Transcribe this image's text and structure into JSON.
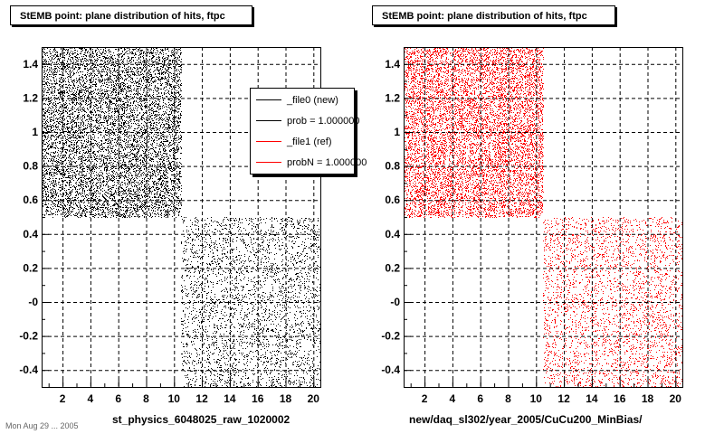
{
  "panels": [
    {
      "title": "StEMB point: plane distribution of hits, ftpc",
      "xlabel": "st_physics_6048025_raw_1020002"
    },
    {
      "title": "StEMB point: plane distribution of hits, ftpc",
      "xlabel": "new/daq_sl302/year_2005/CuCu200_MinBias/"
    }
  ],
  "legend": {
    "entries": [
      {
        "label": "_file0 (new)",
        "color": "#000000"
      },
      {
        "label": "prob = 1.000000",
        "color": "#000000"
      },
      {
        "label": "_file1 (ref)",
        "color": "#ff0000"
      },
      {
        "label": "probN = 1.000000",
        "color": "#ff0000"
      }
    ]
  },
  "footer": "Mon Aug 29 ... 2005",
  "chart_data": [
    {
      "type": "scatter",
      "title": "StEMB point: plane distribution of hits, ftpc",
      "xlabel": "st_physics_6048025_raw_1020002",
      "ylabel": "",
      "xlim": [
        0.5,
        20.5
      ],
      "ylim": [
        -0.5,
        1.5
      ],
      "xticks": [
        "2",
        "4",
        "6",
        "8",
        "10",
        "12",
        "14",
        "16",
        "18",
        "20"
      ],
      "yticks": [
        "-0.4",
        "-0.2",
        "-0",
        "0.2",
        "0.4",
        "0.6",
        "0.8",
        "1",
        "1.2",
        "1.4"
      ],
      "grid": true,
      "color": "#000000",
      "regions": [
        {
          "x": [
            0.5,
            10.5
          ],
          "y": [
            0.5,
            1.5
          ],
          "density": "high"
        },
        {
          "x": [
            10.5,
            20.5
          ],
          "y": [
            -0.5,
            0.5
          ],
          "density": "low"
        }
      ]
    },
    {
      "type": "scatter",
      "title": "StEMB point: plane distribution of hits, ftpc",
      "xlabel": "new/daq_sl302/year_2005/CuCu200_MinBias/",
      "ylabel": "",
      "xlim": [
        0.5,
        20.5
      ],
      "ylim": [
        -0.5,
        1.5
      ],
      "xticks": [
        "2",
        "4",
        "6",
        "8",
        "10",
        "12",
        "14",
        "16",
        "18",
        "20"
      ],
      "yticks": [
        "-0.4",
        "-0.2",
        "-0",
        "0.2",
        "0.4",
        "0.6",
        "0.8",
        "1",
        "1.2",
        "1.4"
      ],
      "grid": true,
      "color": "#ff0000",
      "regions": [
        {
          "x": [
            0.5,
            10.5
          ],
          "y": [
            0.5,
            1.5
          ],
          "density": "high"
        },
        {
          "x": [
            10.5,
            20.5
          ],
          "y": [
            -0.5,
            0.5
          ],
          "density": "low"
        }
      ]
    }
  ]
}
